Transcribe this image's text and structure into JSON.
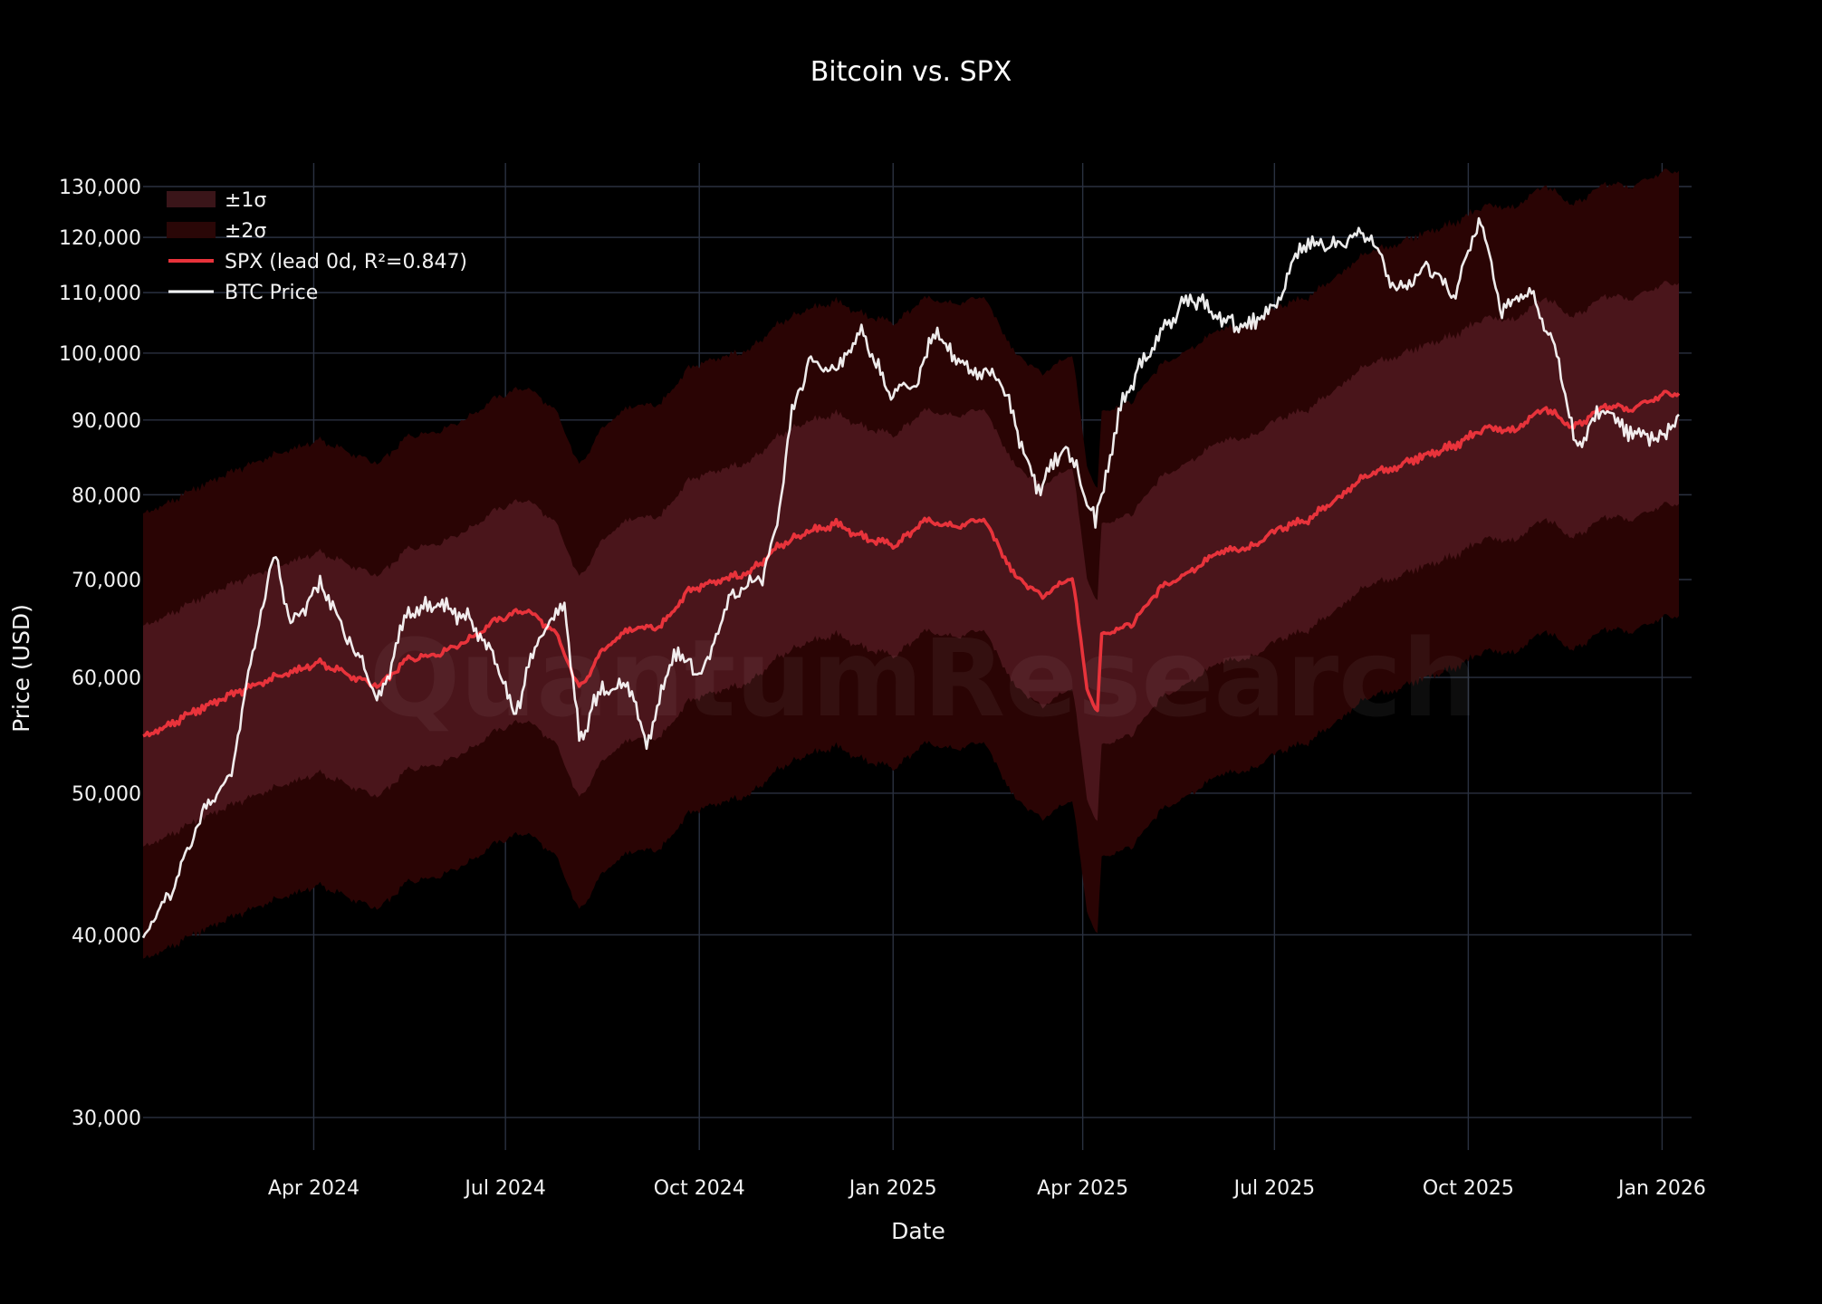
{
  "chart_data": {
    "type": "line",
    "title": "Bitcoin vs. SPX",
    "xlabel": "Date",
    "ylabel": "Price (USD)",
    "yscale": "log",
    "ylim": [
      28500,
      133000
    ],
    "xlim": [
      "2024-01-11",
      "2026-01-15"
    ],
    "watermark": "QuantumResearch",
    "grid": true,
    "legend_position": "top-left",
    "x_ticks": [
      {
        "date": "2024-04-01",
        "label": "Apr 2024"
      },
      {
        "date": "2024-07-01",
        "label": "Jul 2024"
      },
      {
        "date": "2024-10-01",
        "label": "Oct 2024"
      },
      {
        "date": "2025-01-01",
        "label": "Jan 2025"
      },
      {
        "date": "2025-04-01",
        "label": "Apr 2025"
      },
      {
        "date": "2025-07-01",
        "label": "Jul 2025"
      },
      {
        "date": "2025-10-01",
        "label": "Oct 2025"
      },
      {
        "date": "2026-01-01",
        "label": "Jan 2026"
      }
    ],
    "y_ticks": [
      {
        "value": 30000,
        "label": "30,000"
      },
      {
        "value": 40000,
        "label": "40,000"
      },
      {
        "value": 50000,
        "label": "50,000"
      },
      {
        "value": 60000,
        "label": "60,000"
      },
      {
        "value": 70000,
        "label": "70,000"
      },
      {
        "value": 80000,
        "label": "80,000"
      },
      {
        "value": 90000,
        "label": "90,000"
      },
      {
        "value": 100000,
        "label": "100,000"
      },
      {
        "value": 110000,
        "label": "110,000"
      },
      {
        "value": 120000,
        "label": "120,000"
      },
      {
        "value": 130000,
        "label": "130,000"
      }
    ],
    "legend": [
      {
        "key": "sigma1",
        "label": "±1σ",
        "color": "#3a1519"
      },
      {
        "key": "sigma2",
        "label": "±2σ",
        "color": "#2a0707"
      },
      {
        "key": "spx",
        "label": "SPX (lead 0d, R²=0.847)",
        "color": "#e8333b"
      },
      {
        "key": "btc",
        "label": "BTC Price",
        "color": "#ffffff"
      }
    ],
    "colors": {
      "background": "#000000",
      "grid": "#2a3140",
      "band_2sigma": "#2a0404",
      "band_1sigma": "#4a151b",
      "spx_line": "#e8333b",
      "btc_line": "#ffffff"
    },
    "sigma_band_ratios": {
      "one_sigma": 1.19,
      "two_sigma": 1.42
    },
    "series": [
      {
        "key": "spx",
        "name": "SPX (lead 0d, R²=0.847)",
        "x": [
          "2024-01-11",
          "2024-01-25",
          "2024-02-08",
          "2024-02-22",
          "2024-03-07",
          "2024-03-21",
          "2024-04-04",
          "2024-04-18",
          "2024-05-02",
          "2024-05-16",
          "2024-05-30",
          "2024-06-13",
          "2024-06-27",
          "2024-07-11",
          "2024-07-25",
          "2024-08-05",
          "2024-08-15",
          "2024-08-29",
          "2024-09-12",
          "2024-09-26",
          "2024-10-10",
          "2024-10-24",
          "2024-11-07",
          "2024-11-21",
          "2024-12-05",
          "2024-12-19",
          "2025-01-02",
          "2025-01-16",
          "2025-01-30",
          "2025-02-13",
          "2025-02-27",
          "2025-03-13",
          "2025-03-27",
          "2025-04-03",
          "2025-04-08",
          "2025-04-10",
          "2025-04-24",
          "2025-05-08",
          "2025-05-22",
          "2025-06-05",
          "2025-06-19",
          "2025-07-03",
          "2025-07-17",
          "2025-07-31",
          "2025-08-14",
          "2025-08-28",
          "2025-09-11",
          "2025-09-25",
          "2025-10-09",
          "2025-10-23",
          "2025-11-06",
          "2025-11-20",
          "2025-12-04",
          "2025-12-18",
          "2026-01-01",
          "2026-01-09"
        ],
        "values": [
          54600,
          55800,
          57200,
          58400,
          59500,
          60500,
          61400,
          60200,
          59100,
          61800,
          62300,
          63600,
          65700,
          66800,
          64200,
          58900,
          62300,
          64800,
          64900,
          68800,
          70000,
          70600,
          73600,
          75400,
          76400,
          74700,
          73900,
          76700,
          76100,
          77000,
          70600,
          68100,
          70300,
          58900,
          56800,
          64300,
          65200,
          69100,
          70900,
          73100,
          73500,
          75900,
          76900,
          79500,
          82500,
          83600,
          85200,
          86500,
          89000,
          88400,
          91800,
          88800,
          91900,
          91500,
          93600,
          94000
        ]
      },
      {
        "key": "btc",
        "name": "BTC Price",
        "x": [
          "2024-01-11",
          "2024-01-25",
          "2024-02-08",
          "2024-02-22",
          "2024-03-07",
          "2024-03-14",
          "2024-03-21",
          "2024-04-04",
          "2024-04-18",
          "2024-05-02",
          "2024-05-16",
          "2024-05-30",
          "2024-06-13",
          "2024-06-27",
          "2024-07-05",
          "2024-07-18",
          "2024-07-29",
          "2024-08-05",
          "2024-08-15",
          "2024-08-29",
          "2024-09-06",
          "2024-09-19",
          "2024-10-03",
          "2024-10-17",
          "2024-10-31",
          "2024-11-07",
          "2024-11-14",
          "2024-11-22",
          "2024-12-05",
          "2024-12-17",
          "2024-12-30",
          "2025-01-13",
          "2025-01-20",
          "2025-02-03",
          "2025-02-20",
          "2025-03-03",
          "2025-03-10",
          "2025-03-24",
          "2025-04-07",
          "2025-04-21",
          "2025-05-08",
          "2025-05-22",
          "2025-06-05",
          "2025-06-19",
          "2025-07-03",
          "2025-07-14",
          "2025-07-28",
          "2025-08-14",
          "2025-08-28",
          "2025-09-11",
          "2025-09-25",
          "2025-10-06",
          "2025-10-17",
          "2025-10-30",
          "2025-11-13",
          "2025-11-21",
          "2025-12-04",
          "2025-12-18",
          "2026-01-01",
          "2026-01-09"
        ],
        "values": [
          40000,
          42800,
          48500,
          51500,
          66500,
          72800,
          64800,
          69500,
          63500,
          57800,
          66700,
          67500,
          65800,
          61500,
          56300,
          64500,
          67200,
          54300,
          58700,
          59100,
          53800,
          62500,
          60400,
          68500,
          70200,
          75800,
          90800,
          98500,
          97500,
          103500,
          94000,
          95000,
          104000,
          98000,
          96300,
          87000,
          80500,
          86500,
          76500,
          93800,
          103000,
          109500,
          105500,
          104500,
          108500,
          119000,
          118500,
          121000,
          110000,
          114500,
          109500,
          123500,
          107000,
          110200,
          99000,
          86000,
          92000,
          88000,
          87500,
          91000
        ]
      }
    ]
  }
}
